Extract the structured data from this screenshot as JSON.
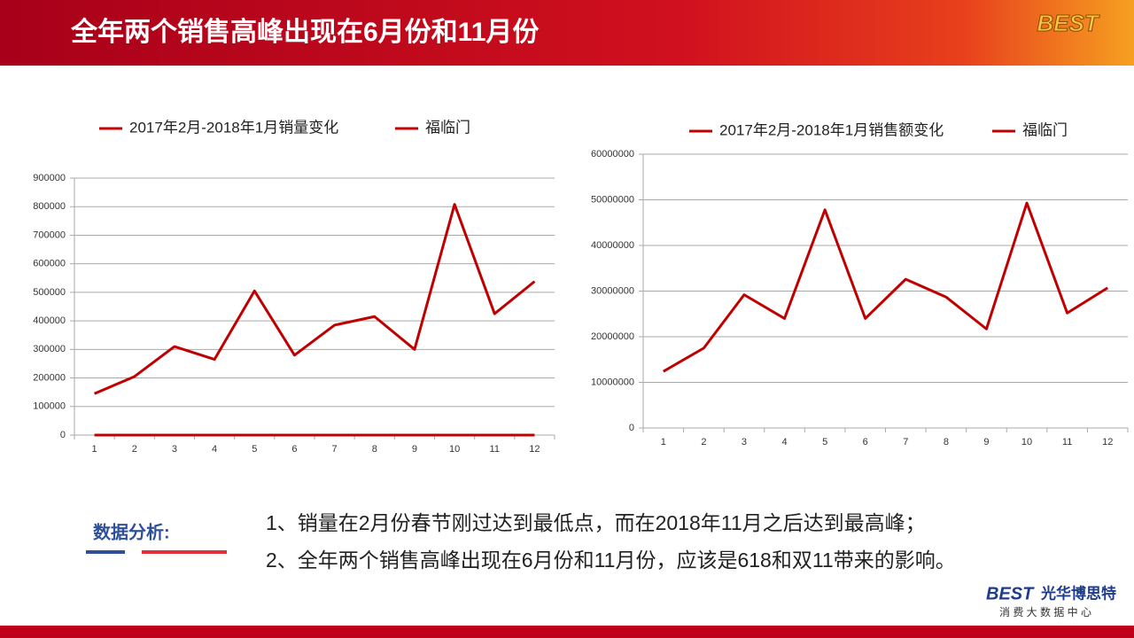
{
  "header": {
    "title": "全年两个销售高峰出现在6月份和11月份",
    "logo": "BEST"
  },
  "chart_data": [
    {
      "type": "line",
      "categories": [
        "1",
        "2",
        "3",
        "4",
        "5",
        "6",
        "7",
        "8",
        "9",
        "10",
        "11",
        "12"
      ],
      "series": [
        {
          "name": "2017年2月-2018年1月销量变化",
          "color": "#c00000",
          "values": [
            145000,
            205000,
            310000,
            265000,
            505000,
            280000,
            385000,
            415000,
            300000,
            808000,
            425000,
            538000
          ]
        },
        {
          "name": "福临门",
          "color": "#c00000",
          "values": [
            0,
            0,
            0,
            0,
            0,
            0,
            0,
            0,
            0,
            0,
            0,
            0
          ]
        }
      ],
      "ylim": [
        0,
        900000
      ],
      "yticks": [
        0,
        100000,
        200000,
        300000,
        400000,
        500000,
        600000,
        700000,
        800000,
        900000
      ],
      "grid": true,
      "legend": "top"
    },
    {
      "type": "line",
      "categories": [
        "1",
        "2",
        "3",
        "4",
        "5",
        "6",
        "7",
        "8",
        "9",
        "10",
        "11",
        "12"
      ],
      "series": [
        {
          "name": "2017年2月-2018年1月销售额变化",
          "color": "#c00000",
          "values": [
            12400000,
            17500000,
            29200000,
            24000000,
            47800000,
            24000000,
            32600000,
            28700000,
            21700000,
            49300000,
            25200000,
            30700000
          ]
        },
        {
          "name": "福临门",
          "color": "#c00000",
          "values": [
            null,
            null,
            null,
            null,
            null,
            null,
            null,
            null,
            null,
            null,
            null,
            null
          ]
        }
      ],
      "ylim": [
        0,
        60000000
      ],
      "yticks": [
        0,
        10000000,
        20000000,
        30000000,
        40000000,
        50000000,
        60000000
      ],
      "grid": true,
      "legend": "top"
    }
  ],
  "analysis": {
    "label": "数据分析:",
    "lines": [
      "1、销量在2月份春节刚过达到最低点，而在2018年11月之后达到最高峰；",
      "2、全年两个销售高峰出现在6月份和11月份，应该是618和双11带来的影响。"
    ]
  },
  "footer": {
    "brand": "BEST",
    "brand_cn": "光华博思特",
    "tagline": "消 费 大 数 据 中 心"
  }
}
